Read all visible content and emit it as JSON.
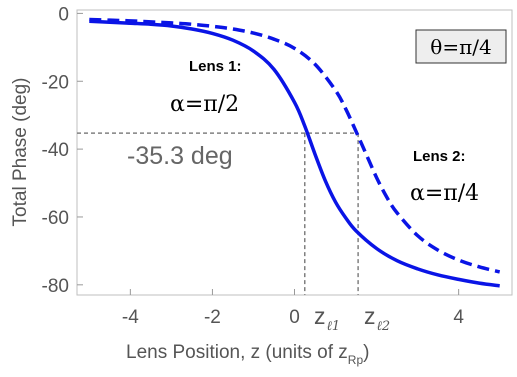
{
  "chart_data": {
    "type": "line",
    "title": "",
    "xlabel": "Lens Position, z (units of z",
    "xlabel_sub": "Rp",
    "xlabel_close": ")",
    "ylabel": "Total Phase (deg)",
    "xlim": [
      -5.3,
      5.3
    ],
    "ylim": [
      -83,
      1
    ],
    "x_ticks": [
      -4,
      -2,
      0,
      4
    ],
    "x_tick_labels": [
      "-4",
      "-2",
      "0",
      "4"
    ],
    "y_ticks": [
      0,
      -20,
      -40,
      -60,
      -80
    ],
    "y_tick_labels": [
      "0",
      "-20",
      "-40",
      "-60",
      "-80"
    ],
    "grid": false,
    "legend": "none",
    "series": [
      {
        "color": "#0a14e6",
        "dash": "solid",
        "x": [
          -5,
          -4.5,
          -4,
          -3.5,
          -3,
          -2.5,
          -2,
          -1.5,
          -1,
          -0.5,
          0,
          0.25,
          0.5,
          0.75,
          1,
          1.25,
          1.5,
          2,
          2.5,
          3,
          3.5,
          4,
          4.5,
          5
        ],
        "y": [
          -2.3,
          -2.6,
          -2.9,
          -3.2,
          -3.7,
          -4.6,
          -5.9,
          -7.9,
          -11.1,
          -16.5,
          -26.2,
          -33.2,
          -41.5,
          -49.3,
          -55.6,
          -60.3,
          -64.1,
          -69.3,
          -72.9,
          -75.3,
          -77.1,
          -78.4,
          -79.5,
          -80.3
        ]
      },
      {
        "color": "#0a14e6",
        "dash": "dashed",
        "x": [
          -5,
          -4.5,
          -4,
          -3.5,
          -3,
          -2.5,
          -2,
          -1.5,
          -1,
          -0.5,
          0,
          0.5,
          1,
          1.25,
          1.5,
          1.75,
          2,
          2.25,
          2.5,
          3,
          3.5,
          4,
          4.5,
          5
        ],
        "y": [
          -1.8,
          -2.0,
          -2.2,
          -2.5,
          -2.8,
          -3.2,
          -3.8,
          -4.6,
          -5.8,
          -7.6,
          -10.3,
          -15.0,
          -22.7,
          -28.2,
          -34.8,
          -41.6,
          -48.4,
          -54.2,
          -58.8,
          -65.5,
          -69.8,
          -72.7,
          -74.7,
          -76.2
        ]
      }
    ],
    "annotations": {
      "lens1_title": "Lens 1:",
      "lens1_alpha": "α=π/2",
      "lens2_title": "Lens 2:",
      "lens2_alpha": "α=π/4",
      "phase_value": "-35.3 deg",
      "theta": "θ=π/4",
      "zl_char": "z",
      "zl1_sub": "ℓ1",
      "zl2_sub": "ℓ2",
      "phase_line_y": -35.3,
      "zl1_x": 0.25,
      "zl2_x": 1.55
    }
  }
}
